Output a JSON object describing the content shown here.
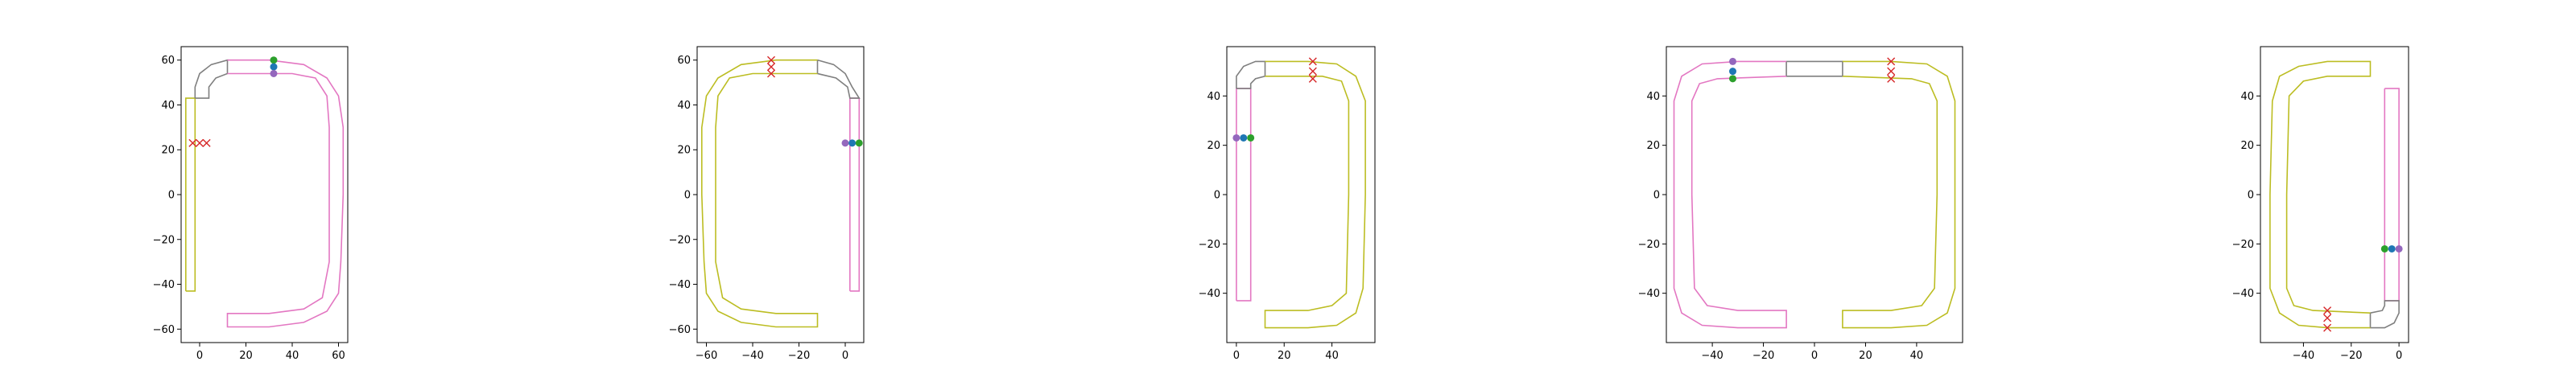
{
  "chart_data": [
    {
      "type": "line",
      "xlim": [
        -8,
        64
      ],
      "ylim": [
        -66,
        66
      ],
      "xticks": [
        0,
        20,
        40,
        60
      ],
      "yticks": [
        -60,
        -40,
        -20,
        0,
        20,
        40,
        60
      ],
      "grid": false,
      "series": [
        {
          "color": "#bcbd22",
          "values": [
            [
              -6,
              -43
            ],
            [
              -6,
              43
            ],
            [
              -2,
              43
            ],
            [
              -2,
              -43
            ],
            [
              -6,
              -43
            ]
          ]
        },
        {
          "color": "#7f7f7f",
          "values": [
            [
              -2,
              43
            ],
            [
              -2,
              48
            ],
            [
              0,
              54
            ],
            [
              5,
              58
            ],
            [
              12,
              60
            ],
            [
              12,
              54
            ],
            [
              7,
              52
            ],
            [
              4,
              48
            ],
            [
              4,
              43
            ],
            [
              -2,
              43
            ]
          ]
        },
        {
          "color": "#e377c2",
          "values": [
            [
              12,
              60
            ],
            [
              30,
              60
            ],
            [
              45,
              58
            ],
            [
              55,
              52
            ],
            [
              60,
              44
            ],
            [
              62,
              30
            ],
            [
              62,
              0
            ],
            [
              61,
              -30
            ],
            [
              60,
              -44
            ],
            [
              55,
              -52
            ],
            [
              45,
              -57
            ],
            [
              30,
              -59
            ],
            [
              12,
              -59
            ],
            [
              12,
              -53
            ],
            [
              30,
              -53
            ],
            [
              45,
              -51
            ],
            [
              53,
              -46
            ],
            [
              56,
              -30
            ],
            [
              56,
              0
            ],
            [
              56,
              30
            ],
            [
              55,
              44
            ],
            [
              50,
              52
            ],
            [
              40,
              54
            ],
            [
              30,
              54
            ],
            [
              12,
              54
            ]
          ]
        }
      ],
      "points": [
        {
          "x": 32,
          "y": 60,
          "color": "#2ca02c",
          "marker": "circle"
        },
        {
          "x": 32,
          "y": 57,
          "color": "#1f77b4",
          "marker": "circle"
        },
        {
          "x": 32,
          "y": 54,
          "color": "#9467bd",
          "marker": "circle"
        },
        {
          "x": -3,
          "y": 23,
          "color": "#d62728",
          "marker": "x"
        },
        {
          "x": 0,
          "y": 23,
          "color": "#d62728",
          "marker": "x"
        },
        {
          "x": 3,
          "y": 23,
          "color": "#d62728",
          "marker": "x"
        }
      ]
    },
    {
      "type": "line",
      "xlim": [
        -64,
        8
      ],
      "ylim": [
        -66,
        66
      ],
      "xticks": [
        -60,
        -40,
        -20,
        0
      ],
      "yticks": [
        -60,
        -40,
        -20,
        0,
        20,
        40,
        60
      ],
      "grid": false,
      "series": [
        {
          "color": "#e377c2",
          "values": [
            [
              2,
              -43
            ],
            [
              2,
              43
            ],
            [
              6,
              43
            ],
            [
              6,
              -43
            ],
            [
              2,
              -43
            ]
          ]
        },
        {
          "color": "#7f7f7f",
          "values": [
            [
              -12,
              60
            ],
            [
              -5,
              58
            ],
            [
              0,
              54
            ],
            [
              3,
              48
            ],
            [
              6,
              43
            ],
            [
              2,
              43
            ],
            [
              1,
              48
            ],
            [
              -4,
              52
            ],
            [
              -12,
              54
            ],
            [
              -12,
              60
            ]
          ]
        },
        {
          "color": "#bcbd22",
          "values": [
            [
              -12,
              60
            ],
            [
              -30,
              60
            ],
            [
              -45,
              58
            ],
            [
              -55,
              52
            ],
            [
              -60,
              44
            ],
            [
              -62,
              30
            ],
            [
              -62,
              0
            ],
            [
              -61,
              -30
            ],
            [
              -60,
              -44
            ],
            [
              -55,
              -52
            ],
            [
              -45,
              -57
            ],
            [
              -30,
              -59
            ],
            [
              -12,
              -59
            ],
            [
              -12,
              -53
            ],
            [
              -30,
              -53
            ],
            [
              -45,
              -51
            ],
            [
              -53,
              -46
            ],
            [
              -56,
              -30
            ],
            [
              -56,
              0
            ],
            [
              -56,
              30
            ],
            [
              -55,
              44
            ],
            [
              -50,
              52
            ],
            [
              -40,
              54
            ],
            [
              -30,
              54
            ],
            [
              -12,
              54
            ]
          ]
        }
      ],
      "points": [
        {
          "x": 0,
          "y": 23,
          "color": "#9467bd",
          "marker": "circle"
        },
        {
          "x": 3,
          "y": 23,
          "color": "#1f77b4",
          "marker": "circle"
        },
        {
          "x": 6,
          "y": 23,
          "color": "#2ca02c",
          "marker": "circle"
        },
        {
          "x": -32,
          "y": 60,
          "color": "#d62728",
          "marker": "x"
        },
        {
          "x": -32,
          "y": 57,
          "color": "#d62728",
          "marker": "x"
        },
        {
          "x": -32,
          "y": 54,
          "color": "#d62728",
          "marker": "x"
        }
      ]
    },
    {
      "type": "line",
      "xlim": [
        -4,
        58
      ],
      "ylim": [
        -60,
        60
      ],
      "xticks": [
        0,
        20,
        40
      ],
      "yticks": [
        -40,
        -20,
        0,
        20,
        40
      ],
      "grid": false,
      "series": [
        {
          "color": "#e377c2",
          "values": [
            [
              0,
              -43
            ],
            [
              0,
              43
            ],
            [
              6,
              43
            ],
            [
              6,
              -43
            ],
            [
              0,
              -43
            ]
          ]
        },
        {
          "color": "#7f7f7f",
          "values": [
            [
              0,
              43
            ],
            [
              0,
              48
            ],
            [
              3,
              52
            ],
            [
              8,
              54
            ],
            [
              12,
              54
            ],
            [
              12,
              48
            ],
            [
              8,
              47
            ],
            [
              6,
              45
            ],
            [
              6,
              43
            ],
            [
              0,
              43
            ]
          ]
        },
        {
          "color": "#bcbd22",
          "values": [
            [
              12,
              54
            ],
            [
              30,
              54
            ],
            [
              42,
              53
            ],
            [
              50,
              48
            ],
            [
              54,
              38
            ],
            [
              54,
              0
            ],
            [
              53,
              -38
            ],
            [
              50,
              -48
            ],
            [
              42,
              -53
            ],
            [
              30,
              -54
            ],
            [
              12,
              -54
            ],
            [
              12,
              -47
            ],
            [
              30,
              -47
            ],
            [
              40,
              -45
            ],
            [
              46,
              -40
            ],
            [
              47,
              0
            ],
            [
              47,
              38
            ],
            [
              44,
              46
            ],
            [
              36,
              48
            ],
            [
              12,
              48
            ]
          ]
        }
      ],
      "points": [
        {
          "x": 0,
          "y": 23,
          "color": "#9467bd",
          "marker": "circle"
        },
        {
          "x": 3,
          "y": 23,
          "color": "#1f77b4",
          "marker": "circle"
        },
        {
          "x": 6,
          "y": 23,
          "color": "#2ca02c",
          "marker": "circle"
        },
        {
          "x": 32,
          "y": 54,
          "color": "#d62728",
          "marker": "x"
        },
        {
          "x": 32,
          "y": 50,
          "color": "#d62728",
          "marker": "x"
        },
        {
          "x": 32,
          "y": 47,
          "color": "#d62728",
          "marker": "x"
        }
      ]
    },
    {
      "type": "line",
      "xlim": [
        -58,
        58
      ],
      "ylim": [
        -60,
        60
      ],
      "xticks": [
        -40,
        -20,
        0,
        20,
        40
      ],
      "yticks": [
        -40,
        -20,
        0,
        20,
        40
      ],
      "grid": false,
      "series": [
        {
          "color": "#7f7f7f",
          "values": [
            [
              -11,
              54
            ],
            [
              11,
              54
            ],
            [
              11,
              48
            ],
            [
              -11,
              48
            ],
            [
              -11,
              54
            ]
          ]
        },
        {
          "color": "#e377c2",
          "values": [
            [
              -11,
              54
            ],
            [
              -30,
              54
            ],
            [
              -44,
              53
            ],
            [
              -52,
              48
            ],
            [
              -55,
              38
            ],
            [
              -55,
              0
            ],
            [
              -55,
              -38
            ],
            [
              -52,
              -48
            ],
            [
              -44,
              -53
            ],
            [
              -30,
              -54
            ],
            [
              -11,
              -54
            ],
            [
              -11,
              -47
            ],
            [
              -30,
              -47
            ],
            [
              -42,
              -45
            ],
            [
              -47,
              -38
            ],
            [
              -48,
              0
            ],
            [
              -48,
              38
            ],
            [
              -45,
              45
            ],
            [
              -38,
              47
            ],
            [
              -11,
              48
            ]
          ]
        },
        {
          "color": "#bcbd22",
          "values": [
            [
              11,
              54
            ],
            [
              30,
              54
            ],
            [
              44,
              53
            ],
            [
              52,
              48
            ],
            [
              55,
              38
            ],
            [
              55,
              0
            ],
            [
              55,
              -38
            ],
            [
              52,
              -48
            ],
            [
              44,
              -53
            ],
            [
              30,
              -54
            ],
            [
              11,
              -54
            ],
            [
              11,
              -47
            ],
            [
              30,
              -47
            ],
            [
              42,
              -45
            ],
            [
              47,
              -38
            ],
            [
              48,
              0
            ],
            [
              48,
              38
            ],
            [
              45,
              45
            ],
            [
              38,
              47
            ],
            [
              11,
              48
            ]
          ]
        }
      ],
      "points": [
        {
          "x": -32,
          "y": 54,
          "color": "#9467bd",
          "marker": "circle"
        },
        {
          "x": -32,
          "y": 50,
          "color": "#1f77b4",
          "marker": "circle"
        },
        {
          "x": -32,
          "y": 47,
          "color": "#2ca02c",
          "marker": "circle"
        },
        {
          "x": 30,
          "y": 54,
          "color": "#d62728",
          "marker": "x"
        },
        {
          "x": 30,
          "y": 50,
          "color": "#d62728",
          "marker": "x"
        },
        {
          "x": 30,
          "y": 47,
          "color": "#d62728",
          "marker": "x"
        }
      ]
    },
    {
      "type": "line",
      "xlim": [
        -58,
        4
      ],
      "ylim": [
        -60,
        60
      ],
      "xticks": [
        -40,
        -20,
        0
      ],
      "yticks": [
        -40,
        -20,
        0,
        20,
        40
      ],
      "grid": false,
      "series": [
        {
          "color": "#e377c2",
          "values": [
            [
              -6,
              43
            ],
            [
              -6,
              -43
            ],
            [
              0,
              -43
            ],
            [
              0,
              43
            ],
            [
              -6,
              43
            ]
          ]
        },
        {
          "color": "#7f7f7f",
          "values": [
            [
              -12,
              -48
            ],
            [
              -7,
              -47
            ],
            [
              -6,
              -45
            ],
            [
              -6,
              -43
            ],
            [
              0,
              -43
            ],
            [
              0,
              -48
            ],
            [
              -2,
              -52
            ],
            [
              -6,
              -54
            ],
            [
              -12,
              -54
            ],
            [
              -12,
              -48
            ]
          ]
        },
        {
          "color": "#bcbd22",
          "values": [
            [
              -12,
              -54
            ],
            [
              -30,
              -54
            ],
            [
              -42,
              -53
            ],
            [
              -50,
              -48
            ],
            [
              -54,
              -38
            ],
            [
              -54,
              0
            ],
            [
              -53,
              38
            ],
            [
              -50,
              48
            ],
            [
              -42,
              52
            ],
            [
              -30,
              54
            ],
            [
              -12,
              54
            ],
            [
              -12,
              48
            ],
            [
              -30,
              48
            ],
            [
              -40,
              46
            ],
            [
              -46,
              40
            ],
            [
              -47,
              0
            ],
            [
              -47,
              -38
            ],
            [
              -44,
              -45
            ],
            [
              -36,
              -47
            ],
            [
              -12,
              -48
            ]
          ]
        }
      ],
      "points": [
        {
          "x": -6,
          "y": -22,
          "color": "#2ca02c",
          "marker": "circle"
        },
        {
          "x": -3,
          "y": -22,
          "color": "#1f77b4",
          "marker": "circle"
        },
        {
          "x": 0,
          "y": -22,
          "color": "#9467bd",
          "marker": "circle"
        },
        {
          "x": -30,
          "y": -47,
          "color": "#d62728",
          "marker": "x"
        },
        {
          "x": -30,
          "y": -50,
          "color": "#d62728",
          "marker": "x"
        },
        {
          "x": -30,
          "y": -54,
          "color": "#d62728",
          "marker": "x"
        }
      ]
    }
  ]
}
